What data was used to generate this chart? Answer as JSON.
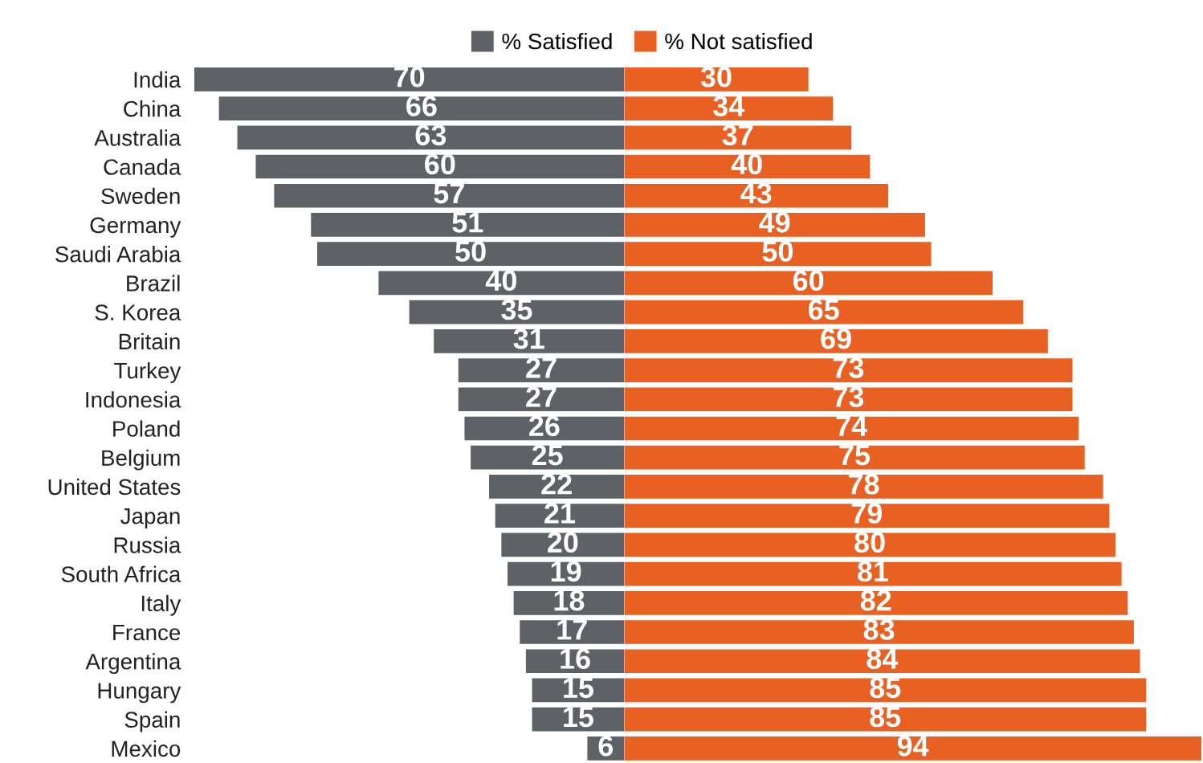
{
  "chart_data": [
    {
      "type": "bar",
      "orientation": "horizontal",
      "data_labels": true,
      "legend": "top right",
      "grid": false,
      "tick_labels": "y",
      "xlim": [
        70,
        0
      ],
      "categories": [
        "India",
        "China",
        "Australia",
        "Canada",
        "Sweden",
        "Germany",
        "Saudi Arabia",
        "Brazil",
        "S. Korea",
        "Britain",
        "Turkey",
        "Indonesia",
        "Poland",
        "Belgium",
        "United States",
        "Japan",
        "Russia",
        "South Africa",
        "Italy",
        "France",
        "Argentina",
        "Hungary",
        "Spain",
        "Mexico"
      ],
      "series": [
        {
          "name": "% Satisfied",
          "color": "#5e6166",
          "values": [
            70,
            66,
            63,
            60,
            57,
            51,
            50,
            40,
            35,
            31,
            27,
            27,
            26,
            25,
            22,
            21,
            20,
            19,
            18,
            17,
            16,
            15,
            15,
            6
          ]
        }
      ]
    },
    {
      "type": "bar",
      "orientation": "horizontal",
      "data_labels": true,
      "legend": "top left",
      "grid": false,
      "tick_labels": false,
      "xlim": [
        0,
        94
      ],
      "categories": [
        null,
        null,
        null,
        null,
        null,
        null,
        null,
        null,
        null,
        null,
        null,
        null,
        null,
        null,
        null,
        null,
        null,
        null,
        null,
        null,
        null,
        null,
        null,
        null
      ],
      "series": [
        {
          "name": "% Not satisfied",
          "color": "#e96122",
          "values": [
            30,
            34,
            37,
            40,
            43,
            49,
            50,
            60,
            65,
            69,
            73,
            73,
            74,
            75,
            78,
            79,
            80,
            81,
            82,
            83,
            84,
            85,
            85,
            94
          ]
        }
      ]
    }
  ]
}
